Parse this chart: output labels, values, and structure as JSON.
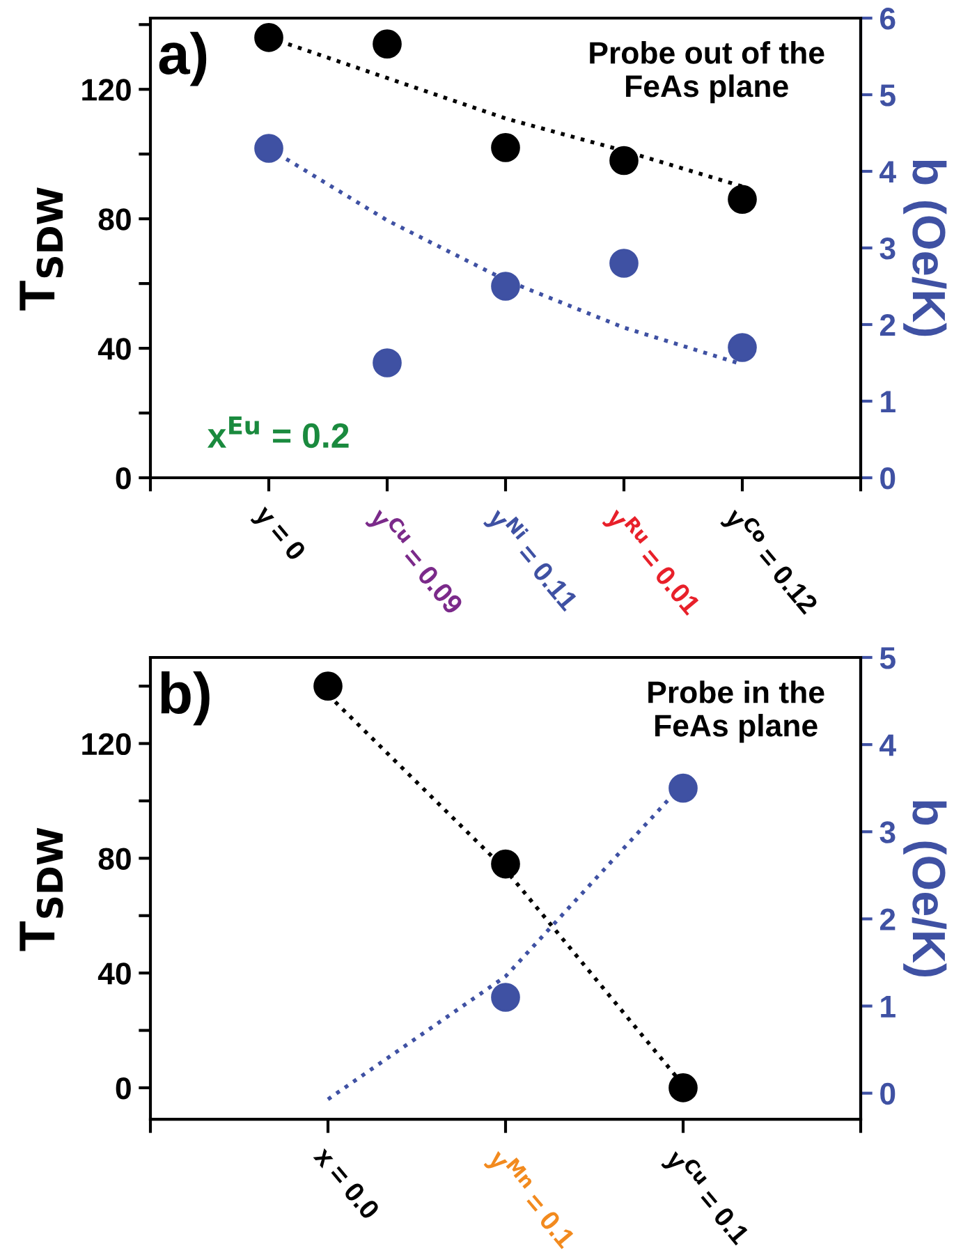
{
  "chart_data": [
    {
      "type": "scatter",
      "ylabel": "T$_{SDW}$",
      "y2label": "b (Oe/K)",
      "categories": [
        "y = 0",
        "y$^{Cu}$ = 0.09",
        "y$^{Ni}$ = 0.11",
        "y$^{Ru}$ = 0.01",
        "y$^{Co}$ = 0.12"
      ],
      "annotations": [
        "a)",
        "Probe out of the\nFeAs plane",
        "x$^{Eu}$ = 0.2"
      ],
      "ylim": [
        0,
        142
      ],
      "yticks": [
        0,
        {
          "value": 20,
          "label": null
        },
        40,
        {
          "value": 60,
          "label": null
        },
        80,
        {
          "value": 100,
          "label": null
        },
        120,
        {
          "value": 140,
          "label": null
        }
      ],
      "y2lim": [
        0,
        6
      ],
      "y2ticks": [
        0,
        1,
        2,
        3,
        4,
        5,
        6
      ],
      "grid": false,
      "legend": false,
      "series": [
        {
          "marker": "circle",
          "color": "#000000",
          "values": [
            136,
            134,
            102,
            98,
            86
          ]
        },
        {
          "marker": "circle",
          "color": "#3f51a3",
          "axis": "y2",
          "values": [
            4.3,
            1.5,
            2.5,
            2.8,
            1.7
          ]
        },
        {
          "type": "line",
          "line_style": "dotted",
          "color": "#000000",
          "values": [
            136,
            123.5,
            111,
            101,
            90
          ]
        },
        {
          "type": "line",
          "line_style": "dotted",
          "color": "#3f51a3",
          "axis": "y2",
          "values": [
            4.3,
            3.36,
            2.58,
            1.96,
            1.48
          ]
        }
      ]
    },
    {
      "type": "scatter",
      "ylabel": "T$_{SDW}$",
      "y2label": "b (Oe/K)",
      "categories": [
        "x = 0.0",
        "y$^{Mn}$ = 0.1",
        "y$^{Cu}$ = 0.1"
      ],
      "annotations": [
        "b)",
        "Probe in the\nFeAs plane"
      ],
      "ylim": [
        -11,
        150
      ],
      "yticks": [
        0,
        {
          "value": 20,
          "label": null
        },
        40,
        {
          "value": 60,
          "label": null
        },
        80,
        {
          "value": 100,
          "label": null
        },
        120,
        {
          "value": 140,
          "label": null
        }
      ],
      "y2lim": [
        -0.3,
        5
      ],
      "y2ticks": [
        0,
        1,
        2,
        3,
        4,
        5
      ],
      "grid": false,
      "legend": false,
      "series": [
        {
          "marker": "circle",
          "color": "#000000",
          "values": [
            140,
            78,
            0
          ]
        },
        {
          "marker": "circle",
          "color": "#3f51a3",
          "axis": "y2",
          "values": [
            null,
            1.1,
            3.5
          ]
        },
        {
          "type": "line",
          "line_style": "dotted",
          "color": "#000000",
          "values": [
            137,
            76,
            1
          ]
        },
        {
          "type": "line",
          "line_style": "dotted",
          "color": "#3f51a3",
          "axis": "y2",
          "values": [
            -0.07,
            1.34,
            3.55
          ]
        }
      ]
    }
  ]
}
